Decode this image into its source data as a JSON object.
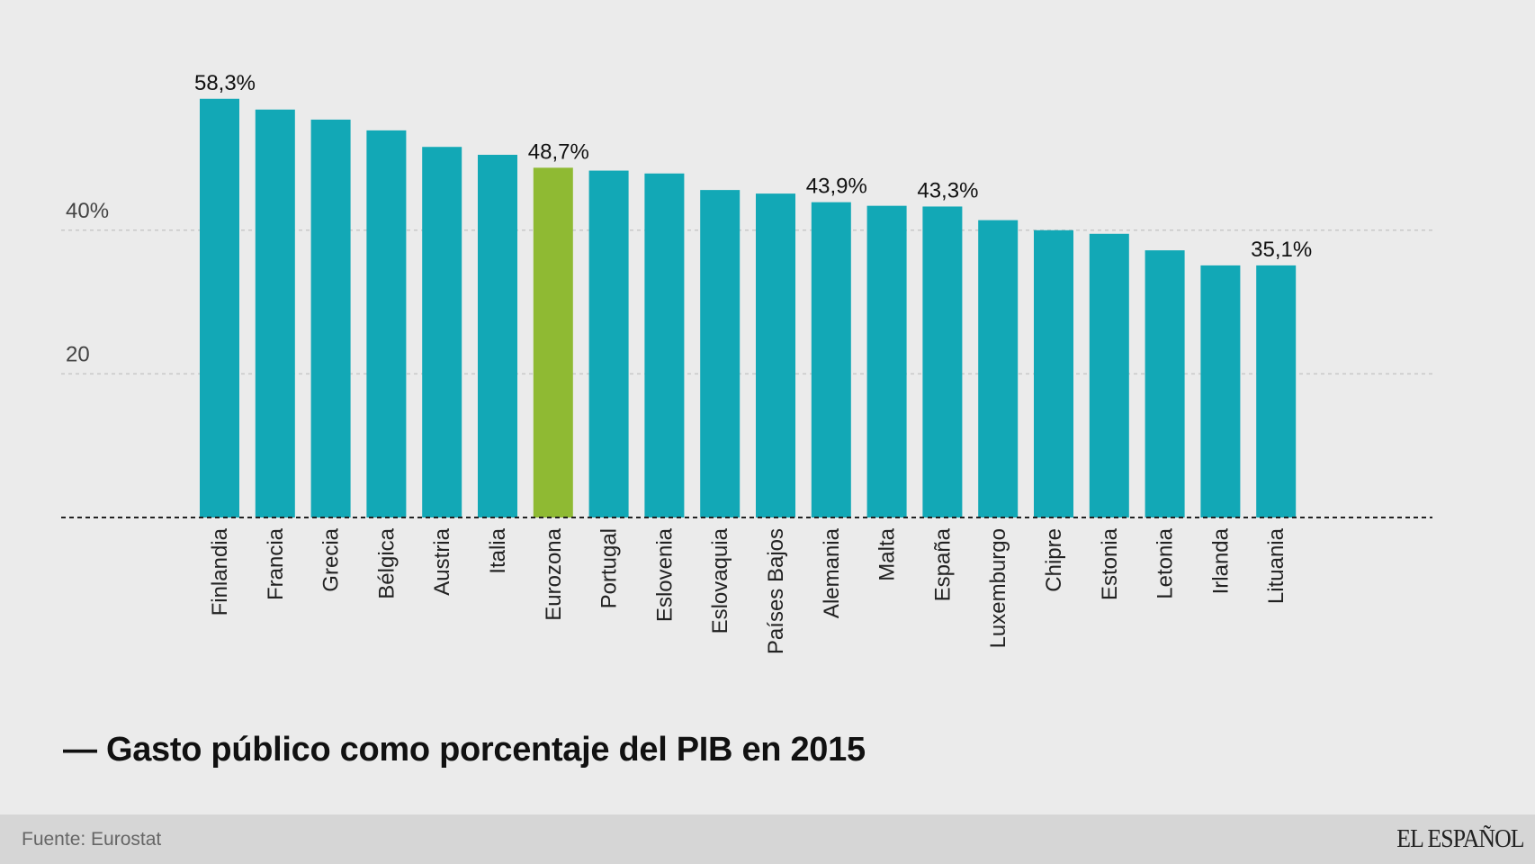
{
  "chart_data": {
    "type": "bar",
    "title": "— Gasto público como porcentaje del PIB en 2015",
    "categories": [
      "Finlandia",
      "Francia",
      "Grecia",
      "Bélgica",
      "Austria",
      "Italia",
      "Eurozona",
      "Portugal",
      "Eslovenia",
      "Eslovaquia",
      "Países Bajos",
      "Alemania",
      "Malta",
      "España",
      "Luxemburgo",
      "Chipre",
      "Estonia",
      "Letonia",
      "Irlanda",
      "Lituania"
    ],
    "values": [
      58.3,
      56.8,
      55.4,
      53.9,
      51.6,
      50.5,
      48.7,
      48.3,
      47.9,
      45.6,
      45.1,
      43.9,
      43.4,
      43.3,
      41.4,
      40.0,
      39.5,
      37.2,
      35.1,
      35.1
    ],
    "highlight": "Eurozona",
    "colors": {
      "bar": "#12a8b6",
      "highlight": "#8fba33"
    },
    "data_labels": [
      {
        "category": "Finlandia",
        "text": "58,3%"
      },
      {
        "category": "Eurozona",
        "text": "48,7%"
      },
      {
        "category": "Alemania",
        "text": "43,9%"
      },
      {
        "category": "España",
        "text": "43,3%"
      },
      {
        "category": "Lituania",
        "text": "35,1%"
      }
    ],
    "yticks": [
      {
        "value": 40,
        "label": "40%"
      },
      {
        "value": 20,
        "label": "20"
      }
    ],
    "ylim": [
      0,
      60
    ],
    "grid": true,
    "xlabel": "",
    "ylabel": ""
  },
  "footer": {
    "source": "Fuente: Eurostat",
    "brand": "EL ESPAÑOL"
  }
}
